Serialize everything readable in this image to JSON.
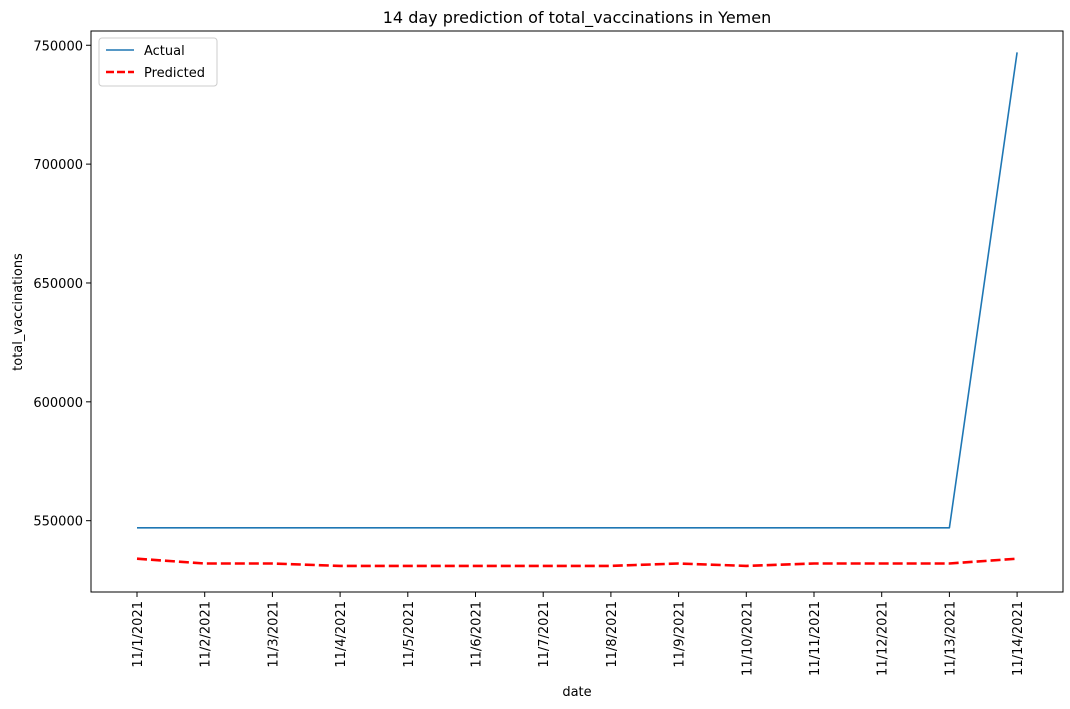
{
  "chart_data": {
    "type": "line",
    "title": "14 day prediction of total_vaccinations in Yemen",
    "xlabel": "date",
    "ylabel": "total_vaccinations",
    "categories": [
      "11/1/2021",
      "11/2/2021",
      "11/3/2021",
      "11/4/2021",
      "11/5/2021",
      "11/6/2021",
      "11/7/2021",
      "11/8/2021",
      "11/9/2021",
      "11/10/2021",
      "11/11/2021",
      "11/12/2021",
      "11/13/2021",
      "11/14/2021"
    ],
    "ylim": [
      520000,
      756000
    ],
    "yticks": [
      550000,
      600000,
      650000,
      700000,
      750000
    ],
    "legend": "top-left",
    "grid": false,
    "series": [
      {
        "name": "Actual",
        "color": "#1f77b4",
        "style": "solid",
        "values": [
          547000,
          547000,
          547000,
          547000,
          547000,
          547000,
          547000,
          547000,
          547000,
          547000,
          547000,
          547000,
          547000,
          747000
        ]
      },
      {
        "name": "Predicted",
        "color": "#ff0000",
        "style": "dashed",
        "values": [
          534000,
          532000,
          532000,
          531000,
          531000,
          531000,
          531000,
          531000,
          532000,
          531000,
          532000,
          532000,
          532000,
          534000
        ]
      }
    ]
  }
}
